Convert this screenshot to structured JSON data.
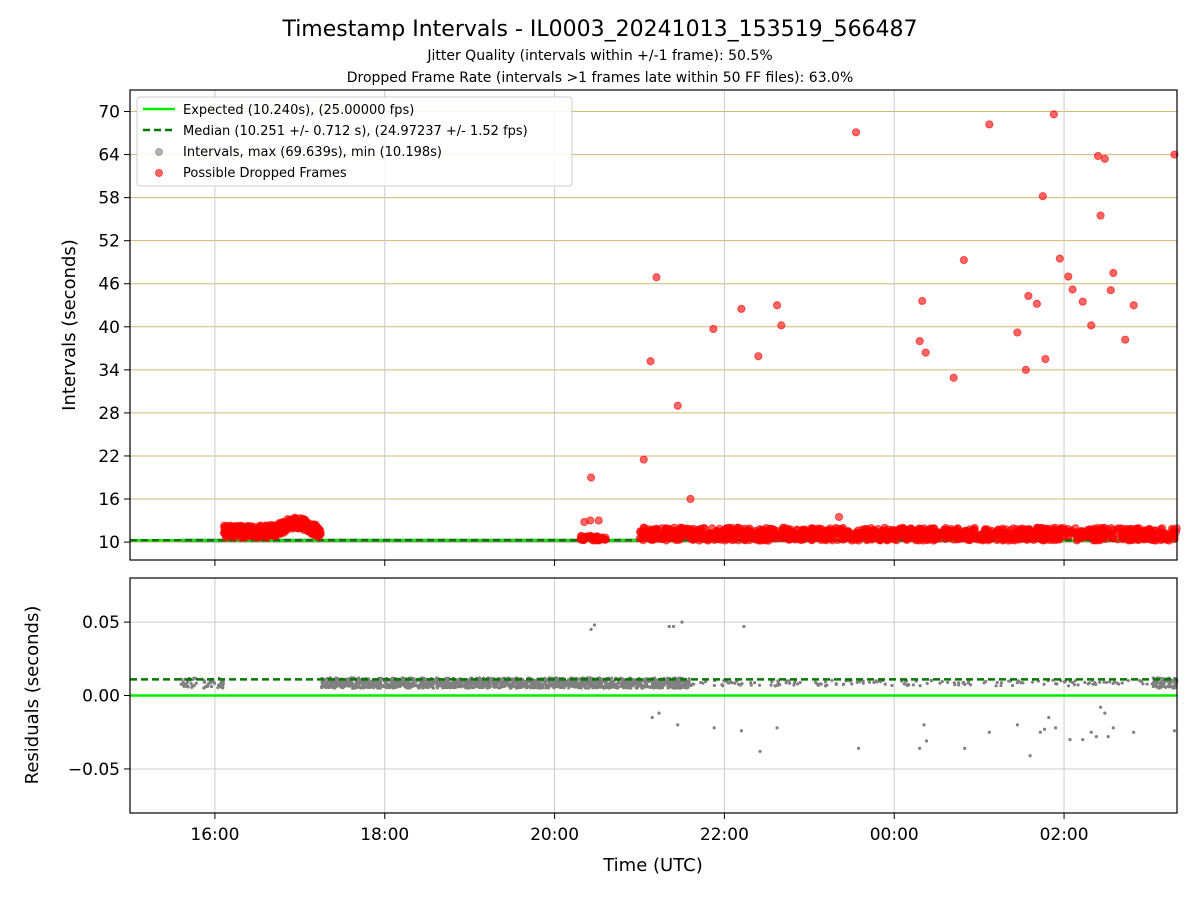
{
  "chart_data": [
    {
      "type": "scatter",
      "title": "Timestamp Intervals - IL0003_20241013_153519_566487",
      "subtitle1": "Jitter Quality (intervals within +/-1 frame): 50.5%",
      "subtitle2": "Dropped Frame Rate (intervals >1 frames late within 50 FF files): 63.0%",
      "ylabel": "Intervals (seconds)",
      "xlim_hours": [
        15.0,
        27.33
      ],
      "ylim": [
        7.5,
        73.0
      ],
      "yticks": [
        10,
        16,
        22,
        28,
        34,
        40,
        46,
        52,
        58,
        64,
        70
      ],
      "x_tick_hours": [
        16,
        18,
        20,
        22,
        24,
        26
      ],
      "x_tick_labels": [
        "16:00",
        "18:00",
        "20:00",
        "22:00",
        "00:00",
        "02:00"
      ],
      "grid": true,
      "legend_position": "top-left",
      "legend": [
        "Expected (10.240s), (25.00000 fps)",
        "Median (10.251 +/- 0.712 s), (24.97237 +/- 1.52 fps)",
        "Intervals, max (69.639s), min (10.198s)",
        "Possible Dropped Frames"
      ],
      "expected_interval": 10.24,
      "median_interval": 10.251,
      "interval_band": {
        "x_range": [
          15.6,
          27.33
        ],
        "y_range": [
          10.2,
          10.5
        ]
      },
      "dropped_frames": [
        {
          "x": 20.43,
          "y": 19.0
        },
        {
          "x": 20.35,
          "y": 12.8
        },
        {
          "x": 20.42,
          "y": 13.0
        },
        {
          "x": 20.52,
          "y": 13.0
        },
        {
          "x": 21.05,
          "y": 21.5
        },
        {
          "x": 21.13,
          "y": 35.2
        },
        {
          "x": 21.2,
          "y": 46.9
        },
        {
          "x": 21.45,
          "y": 29.0
        },
        {
          "x": 21.6,
          "y": 16.0
        },
        {
          "x": 21.87,
          "y": 39.7
        },
        {
          "x": 22.2,
          "y": 42.5
        },
        {
          "x": 22.4,
          "y": 35.9
        },
        {
          "x": 22.62,
          "y": 43.0
        },
        {
          "x": 22.67,
          "y": 40.2
        },
        {
          "x": 23.35,
          "y": 13.5
        },
        {
          "x": 23.55,
          "y": 67.1
        },
        {
          "x": 24.3,
          "y": 38.0
        },
        {
          "x": 24.33,
          "y": 43.6
        },
        {
          "x": 24.37,
          "y": 36.4
        },
        {
          "x": 24.7,
          "y": 32.9
        },
        {
          "x": 24.82,
          "y": 49.3
        },
        {
          "x": 25.12,
          "y": 68.2
        },
        {
          "x": 25.45,
          "y": 39.2
        },
        {
          "x": 25.55,
          "y": 34.0
        },
        {
          "x": 25.58,
          "y": 44.3
        },
        {
          "x": 25.68,
          "y": 43.2
        },
        {
          "x": 25.75,
          "y": 58.2
        },
        {
          "x": 25.78,
          "y": 35.5
        },
        {
          "x": 25.88,
          "y": 69.6
        },
        {
          "x": 25.95,
          "y": 49.5
        },
        {
          "x": 26.05,
          "y": 47.0
        },
        {
          "x": 26.1,
          "y": 45.2
        },
        {
          "x": 26.22,
          "y": 43.5
        },
        {
          "x": 26.32,
          "y": 40.2
        },
        {
          "x": 26.4,
          "y": 63.8
        },
        {
          "x": 26.43,
          "y": 55.5
        },
        {
          "x": 26.48,
          "y": 63.4
        },
        {
          "x": 26.55,
          "y": 45.1
        },
        {
          "x": 26.58,
          "y": 47.5
        },
        {
          "x": 26.72,
          "y": 38.2
        },
        {
          "x": 26.82,
          "y": 43.0
        },
        {
          "x": 27.3,
          "y": 64.0
        }
      ]
    },
    {
      "type": "scatter",
      "ylabel": "Residuals (seconds)",
      "xlabel": "Time (UTC)",
      "xlim_hours": [
        15.0,
        27.33
      ],
      "ylim": [
        -0.08,
        0.08
      ],
      "yticks": [
        -0.05,
        0.0,
        0.05
      ],
      "ytick_labels": [
        "−0.05",
        "0.00",
        "0.05"
      ],
      "x_tick_hours": [
        16,
        18,
        20,
        22,
        24,
        26
      ],
      "x_tick_labels": [
        "16:00",
        "18:00",
        "20:00",
        "22:00",
        "00:00",
        "02:00"
      ],
      "grid": true,
      "expected_residual": 0.0,
      "median_residual": 0.011,
      "outliers": [
        {
          "x": 20.43,
          "y": 0.045
        },
        {
          "x": 20.47,
          "y": 0.048
        },
        {
          "x": 21.35,
          "y": 0.047
        },
        {
          "x": 21.4,
          "y": 0.047
        },
        {
          "x": 21.5,
          "y": 0.05
        },
        {
          "x": 22.23,
          "y": 0.047
        },
        {
          "x": 21.15,
          "y": -0.015
        },
        {
          "x": 21.23,
          "y": -0.012
        },
        {
          "x": 21.45,
          "y": -0.02
        },
        {
          "x": 21.88,
          "y": -0.022
        },
        {
          "x": 22.2,
          "y": -0.024
        },
        {
          "x": 22.42,
          "y": -0.038
        },
        {
          "x": 22.62,
          "y": -0.022
        },
        {
          "x": 23.58,
          "y": -0.036
        },
        {
          "x": 24.3,
          "y": -0.036
        },
        {
          "x": 24.35,
          "y": -0.02
        },
        {
          "x": 24.38,
          "y": -0.031
        },
        {
          "x": 24.83,
          "y": -0.036
        },
        {
          "x": 25.12,
          "y": -0.025
        },
        {
          "x": 25.45,
          "y": -0.02
        },
        {
          "x": 25.6,
          "y": -0.041
        },
        {
          "x": 25.72,
          "y": -0.025
        },
        {
          "x": 25.77,
          "y": -0.023
        },
        {
          "x": 25.82,
          "y": -0.015
        },
        {
          "x": 25.9,
          "y": -0.022
        },
        {
          "x": 26.07,
          "y": -0.03
        },
        {
          "x": 26.22,
          "y": -0.03
        },
        {
          "x": 26.32,
          "y": -0.025
        },
        {
          "x": 26.38,
          "y": -0.028
        },
        {
          "x": 26.43,
          "y": -0.008
        },
        {
          "x": 26.48,
          "y": -0.012
        },
        {
          "x": 26.52,
          "y": -0.028
        },
        {
          "x": 26.58,
          "y": -0.022
        },
        {
          "x": 26.82,
          "y": -0.025
        },
        {
          "x": 27.3,
          "y": -0.024
        }
      ]
    }
  ],
  "colors": {
    "expected": "#00ee00",
    "median": "#007700",
    "intervals": "#808080",
    "dropped": "#ff0000",
    "ygrid_top": "#d2b870",
    "grid": "#cccccc"
  }
}
